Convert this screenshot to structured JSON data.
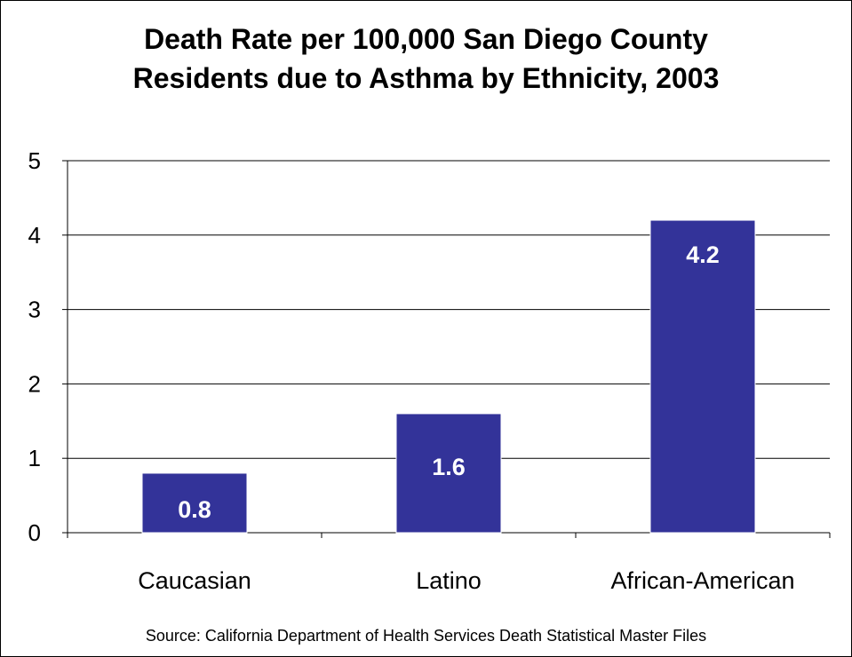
{
  "chart_data": {
    "type": "bar",
    "title_lines": [
      "Death Rate per 100,000 San Diego County",
      "Residents due to Asthma by Ethnicity, 2003"
    ],
    "categories": [
      "Caucasian",
      "Latino",
      "African-American"
    ],
    "values": [
      0.8,
      1.6,
      4.2
    ],
    "data_labels": [
      "0.8",
      "1.6",
      "4.2"
    ],
    "ylim": [
      0,
      5
    ],
    "yticks": [
      "0",
      "1",
      "2",
      "3",
      "4",
      "5"
    ],
    "xlabel": "",
    "ylabel": "",
    "grid": true,
    "bar_color": "#333399",
    "legend": "none",
    "source": "Source: California Department of Health Services Death Statistical Master Files"
  }
}
